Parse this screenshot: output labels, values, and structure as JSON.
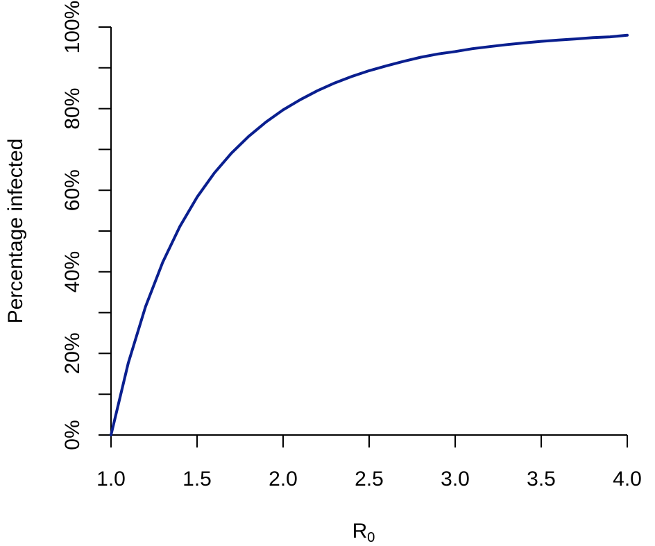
{
  "chart_data": {
    "type": "line",
    "title": "",
    "xlabel": "R",
    "xlabel_subscript": "0",
    "ylabel": "Percentage infected",
    "xlim": [
      1.0,
      4.0
    ],
    "ylim": [
      0,
      100
    ],
    "grid": false,
    "line_color": "#0a1f8f",
    "x_ticks": [
      1.0,
      1.5,
      2.0,
      2.5,
      3.0,
      3.5,
      4.0
    ],
    "x_tick_labels": [
      "1.0",
      "1.5",
      "2.0",
      "2.5",
      "3.0",
      "3.5",
      "4.0"
    ],
    "y_ticks": [
      0,
      10,
      20,
      30,
      40,
      50,
      60,
      70,
      80,
      90,
      100
    ],
    "y_tick_labels": [
      "0%",
      "20%",
      "40%",
      "60%",
      "80%",
      "100%"
    ],
    "y_labeled_ticks": [
      0,
      20,
      40,
      60,
      80,
      100
    ],
    "series": [
      {
        "x": [
          1.0,
          1.1,
          1.2,
          1.3,
          1.4,
          1.5,
          1.6,
          1.7,
          1.8,
          1.9,
          2.0,
          2.1,
          2.2,
          2.3,
          2.4,
          2.5,
          2.6,
          2.7,
          2.8,
          2.9,
          3.0,
          3.1,
          3.2,
          3.3,
          3.4,
          3.5,
          3.6,
          3.7,
          3.8,
          3.9,
          4.0
        ],
        "values": [
          0,
          17.6,
          31.4,
          42.3,
          51.1,
          58.3,
          64.2,
          69.1,
          73.2,
          76.7,
          79.7,
          82.2,
          84.4,
          86.3,
          87.9,
          89.3,
          90.5,
          91.6,
          92.6,
          93.4,
          94.0,
          94.7,
          95.2,
          95.7,
          96.1,
          96.5,
          96.8,
          97.1,
          97.4,
          97.6,
          98.0
        ]
      }
    ]
  }
}
